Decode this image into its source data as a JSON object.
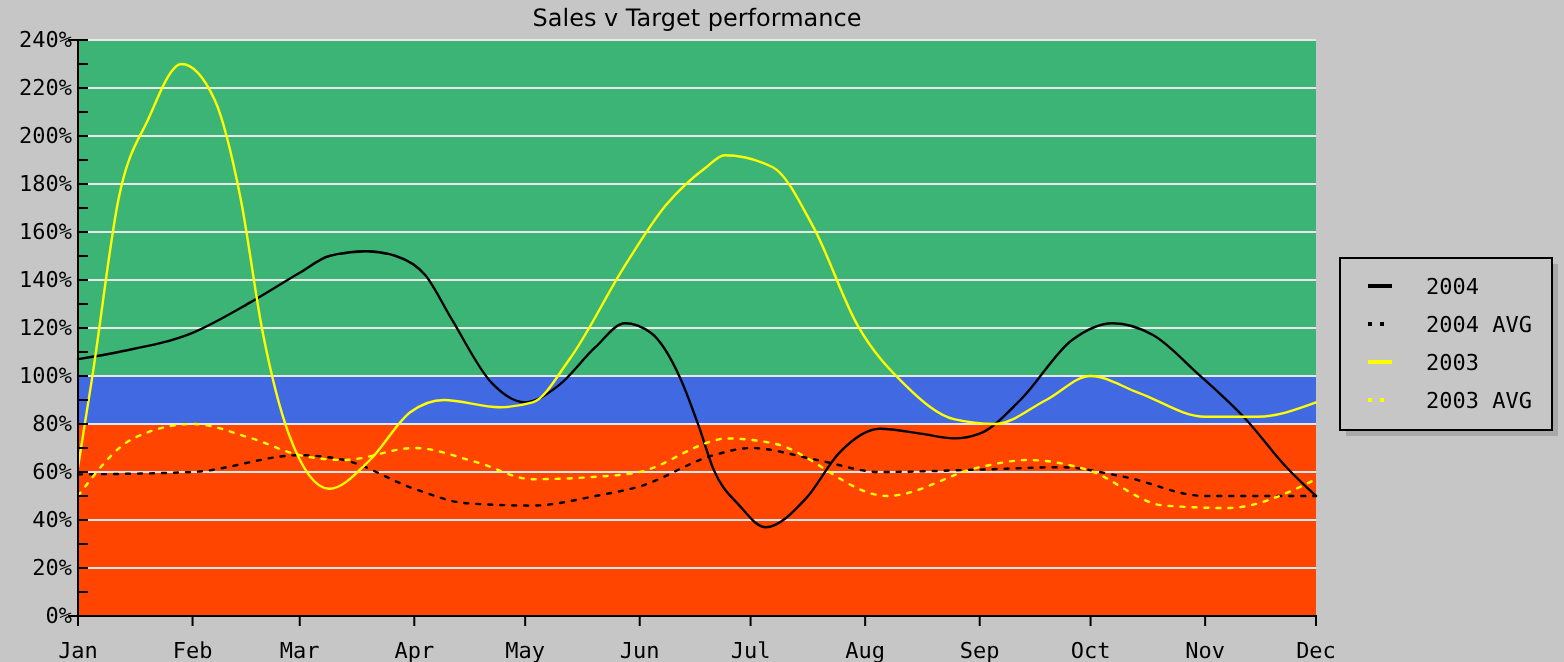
{
  "chart_data": {
    "type": "line",
    "title": "Sales v Target performance",
    "xlim": [
      "--01-01",
      "--12-01"
    ],
    "xticks": [
      {
        "value": "--01-01",
        "label": "Jan"
      },
      {
        "value": "--02-01",
        "label": "Feb"
      },
      {
        "value": "--03-01",
        "label": "Mar"
      },
      {
        "value": "--04-01",
        "label": "Apr"
      },
      {
        "value": "--05-01",
        "label": "May"
      },
      {
        "value": "--06-01",
        "label": "Jun"
      },
      {
        "value": "--07-01",
        "label": "Jul"
      },
      {
        "value": "--08-01",
        "label": "Aug"
      },
      {
        "value": "--09-01",
        "label": "Sep"
      },
      {
        "value": "--10-01",
        "label": "Oct"
      },
      {
        "value": "--11-01",
        "label": "Nov"
      },
      {
        "value": "--12-01",
        "label": "Dec"
      }
    ],
    "ylim": [
      0,
      240
    ],
    "yticks": [
      {
        "value": 0,
        "label": "0%"
      },
      {
        "value": 10,
        "label": null
      },
      {
        "value": 20,
        "label": "20%"
      },
      {
        "value": 30,
        "label": null
      },
      {
        "value": 40,
        "label": "40%"
      },
      {
        "value": 50,
        "label": null
      },
      {
        "value": 60,
        "label": "60%"
      },
      {
        "value": 70,
        "label": null
      },
      {
        "value": 80,
        "label": "80%"
      },
      {
        "value": 90,
        "label": null
      },
      {
        "value": 100,
        "label": "100%"
      },
      {
        "value": 110,
        "label": null
      },
      {
        "value": 120,
        "label": "120%"
      },
      {
        "value": 130,
        "label": null
      },
      {
        "value": 140,
        "label": "140%"
      },
      {
        "value": 150,
        "label": null
      },
      {
        "value": 160,
        "label": "160%"
      },
      {
        "value": 170,
        "label": null
      },
      {
        "value": 180,
        "label": "180%"
      },
      {
        "value": 190,
        "label": null
      },
      {
        "value": 200,
        "label": "200%"
      },
      {
        "value": 210,
        "label": null
      },
      {
        "value": 220,
        "label": "220%"
      },
      {
        "value": 230,
        "label": null
      },
      {
        "value": 240,
        "label": "240%"
      }
    ],
    "grid": "y",
    "legend": "right",
    "marker": "none",
    "bands": [
      {
        "axis": "y",
        "from": 0,
        "to": 80,
        "color": "#ff4500"
      },
      {
        "axis": "y",
        "from": 80,
        "to": 100,
        "color": "#4169e1"
      },
      {
        "axis": "y",
        "from": 100,
        "to": 240,
        "color": "#3bb476"
      }
    ],
    "series": [
      {
        "name": "2004",
        "color": "#000000",
        "line_style": "solid",
        "x": [
          "--01-01",
          "--01-12",
          "--02-01",
          "--02-17",
          "--03-01",
          "--03-09",
          "--03-19",
          "--03-27",
          "--04-04",
          "--04-11",
          "--04-22",
          "--05-01",
          "--05-10",
          "--05-20",
          "--05-28",
          "--06-04",
          "--06-12",
          "--06-17",
          "--06-21",
          "--06-28",
          "--07-05",
          "--07-16",
          "--07-25",
          "--08-05",
          "--08-16",
          "--08-25",
          "--09-01",
          "--09-12",
          "--09-26",
          "--10-07",
          "--10-18",
          "--10-30",
          "--11-12",
          "--11-23",
          "--12-01"
        ],
        "values": [
          107,
          110,
          118,
          131,
          143,
          150,
          152,
          150,
          142,
          124,
          97,
          89,
          96,
          112,
          122,
          118,
          99,
          79,
          61,
          46,
          37,
          49,
          68,
          78,
          76,
          74,
          76,
          90,
          115,
          122,
          117,
          101,
          82,
          62,
          50
        ]
      },
      {
        "name": "2004 AVG",
        "color": "#000000",
        "line_style": "dotted",
        "x": [
          "--01-01",
          "--02-01",
          "--03-01",
          "--03-13",
          "--04-01",
          "--04-15",
          "--05-03",
          "--05-20",
          "--06-01",
          "--06-21",
          "--07-01",
          "--07-19",
          "--08-05",
          "--09-01",
          "--09-23",
          "--10-10",
          "--11-01",
          "--12-01"
        ],
        "values": [
          59,
          60,
          67,
          65,
          53,
          47,
          46,
          50,
          54,
          67,
          70,
          65,
          60,
          61,
          62,
          58,
          50,
          50
        ]
      },
      {
        "name": "2003",
        "color": "#ffff00",
        "line_style": "solid",
        "x": [
          "--01-01",
          "--01-05",
          "--01-12",
          "--01-20",
          "--01-29",
          "--02-07",
          "--02-14",
          "--02-20",
          "--02-27",
          "--03-09",
          "--03-20",
          "--03-31",
          "--04-09",
          "--04-24",
          "--05-03",
          "--05-13",
          "--05-28",
          "--06-08",
          "--06-19",
          "--06-24",
          "--07-07",
          "--07-18",
          "--07-30",
          "--08-12",
          "--08-25",
          "--09-05",
          "--09-19",
          "--10-01",
          "--10-14",
          "--11-01",
          "--11-15",
          "--12-01"
        ],
        "values": [
          62,
          101,
          174,
          207,
          230,
          215,
          174,
          118,
          76,
          53,
          65,
          85,
          90,
          87,
          89,
          107,
          146,
          171,
          187,
          192,
          187,
          162,
          121,
          96,
          82,
          80,
          90,
          100,
          93,
          83,
          83,
          89
        ]
      },
      {
        "name": "2003 AVG",
        "color": "#ffff00",
        "line_style": "dotted",
        "x": [
          "--01-01",
          "--01-16",
          "--02-01",
          "--02-17",
          "--03-01",
          "--03-13",
          "--04-01",
          "--04-18",
          "--05-03",
          "--05-20",
          "--06-01",
          "--06-21",
          "--06-24",
          "--07-07",
          "--08-07",
          "--09-01",
          "--09-14",
          "--09-30",
          "--10-21",
          "--11-07",
          "--12-01"
        ],
        "values": [
          50,
          74,
          80,
          74,
          67,
          65,
          70,
          64,
          57,
          58,
          60,
          73,
          74,
          72,
          50,
          62,
          65,
          61,
          46,
          45,
          57
        ]
      }
    ]
  }
}
